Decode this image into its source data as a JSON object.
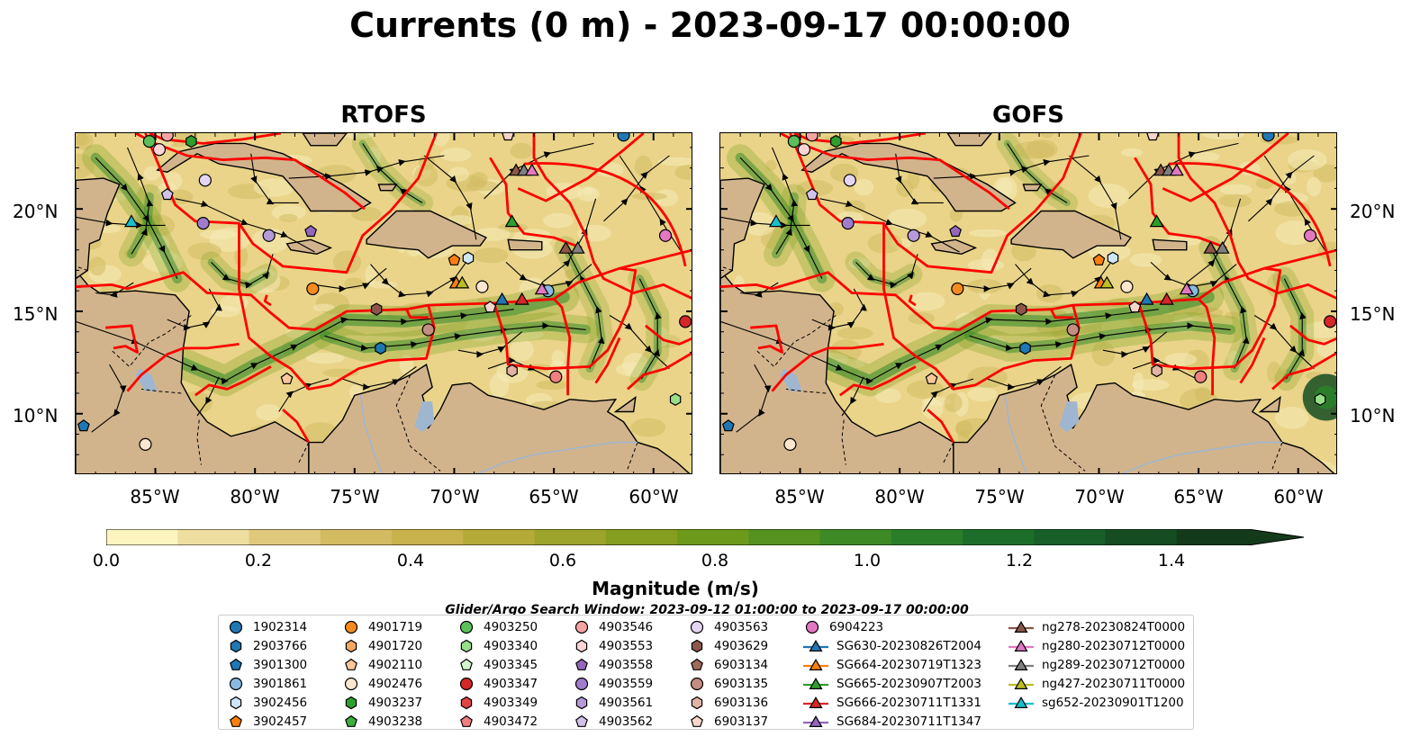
{
  "title": "Currents (0 m) - 2023-09-17 00:00:00",
  "panels": [
    {
      "title": "RTOFS"
    },
    {
      "title": "GOFS"
    }
  ],
  "axes": {
    "x_ticks": [
      "85°W",
      "80°W",
      "75°W",
      "70°W",
      "65°W",
      "60°W"
    ],
    "y_ticks": [
      "20°N",
      "15°N",
      "10°N"
    ],
    "lon_range": [
      -89,
      -58
    ],
    "lat_range": [
      7,
      23.7
    ]
  },
  "colorbar": {
    "label": "Magnitude (m/s)",
    "ticks": [
      "0.0",
      "0.2",
      "0.4",
      "0.6",
      "0.8",
      "1.0",
      "1.2",
      "1.4"
    ],
    "range": [
      0,
      1.5
    ],
    "colors": [
      "#fdf5c0",
      "#eedfa0",
      "#e0c97c",
      "#d3bb62",
      "#c7b24c",
      "#b4aa38",
      "#9da42c",
      "#869e20",
      "#6e9a1c",
      "#559220",
      "#3e8a26",
      "#2a7e2a",
      "#1d6e2a",
      "#175e28",
      "#154c22",
      "#143a1c"
    ]
  },
  "search_window": "Glider/Argo Search Window: 2023-09-12 01:00:00 to 2023-09-17 00:00:00",
  "colors": {
    "land": "#d2b48c",
    "eez": "#ff0000",
    "lakes": "#9fb6d0"
  },
  "legend": [
    {
      "label": "1902314",
      "marker": "circle",
      "color": "#1f77b4"
    },
    {
      "label": "2903766",
      "marker": "hexagon",
      "color": "#1f77b4"
    },
    {
      "label": "3901300",
      "marker": "pentagon",
      "color": "#1f77b4"
    },
    {
      "label": "3901861",
      "marker": "circle",
      "color": "#88b9e0"
    },
    {
      "label": "3902456",
      "marker": "hexagon",
      "color": "#cfe6f7"
    },
    {
      "label": "3902457",
      "marker": "pentagon",
      "color": "#ff7f0e"
    },
    {
      "label": "4901719",
      "marker": "circle",
      "color": "#f58b1e"
    },
    {
      "label": "4901720",
      "marker": "hexagon",
      "color": "#f9a860"
    },
    {
      "label": "4902110",
      "marker": "pentagon",
      "color": "#fcc89b"
    },
    {
      "label": "4902476",
      "marker": "circle",
      "color": "#fde6cf"
    },
    {
      "label": "4903237",
      "marker": "hexagon",
      "color": "#2ca02c"
    },
    {
      "label": "4903238",
      "marker": "pentagon",
      "color": "#3cae3c"
    },
    {
      "label": "4903250",
      "marker": "circle",
      "color": "#5bc05b"
    },
    {
      "label": "4903340",
      "marker": "hexagon",
      "color": "#98df8a"
    },
    {
      "label": "4903345",
      "marker": "pentagon",
      "color": "#d2f5cc"
    },
    {
      "label": "4903347",
      "marker": "circle",
      "color": "#d62728"
    },
    {
      "label": "4903349",
      "marker": "hexagon",
      "color": "#e04545"
    },
    {
      "label": "4903472",
      "marker": "pentagon",
      "color": "#f07f7f"
    },
    {
      "label": "4903546",
      "marker": "circle",
      "color": "#f5a3a3"
    },
    {
      "label": "4903553",
      "marker": "hexagon",
      "color": "#fbd5d5"
    },
    {
      "label": "4903558",
      "marker": "pentagon",
      "color": "#9467bd"
    },
    {
      "label": "4903559",
      "marker": "circle",
      "color": "#a07ccc"
    },
    {
      "label": "4903561",
      "marker": "hexagon",
      "color": "#b59ad9"
    },
    {
      "label": "4903562",
      "marker": "pentagon",
      "color": "#d2c2ea"
    },
    {
      "label": "4903563",
      "marker": "circle",
      "color": "#e4d6f3"
    },
    {
      "label": "4903629",
      "marker": "hexagon",
      "color": "#8c564b"
    },
    {
      "label": "6903134",
      "marker": "pentagon",
      "color": "#a06a5e"
    },
    {
      "label": "6903135",
      "marker": "circle",
      "color": "#c48e80"
    },
    {
      "label": "6903136",
      "marker": "hexagon",
      "color": "#e0b4a4"
    },
    {
      "label": "6903137",
      "marker": "pentagon",
      "color": "#f6d5cb"
    },
    {
      "label": "6904223",
      "marker": "circle",
      "color": "#e377c2"
    },
    {
      "label": "SG630-20230826T2004",
      "marker": "triangle-line",
      "color": "#1f77b4"
    },
    {
      "label": "SG664-20230719T1323",
      "marker": "triangle-line",
      "color": "#ff7f0e"
    },
    {
      "label": "SG665-20230907T2003",
      "marker": "triangle-line",
      "color": "#2ca02c"
    },
    {
      "label": "SG666-20230711T1331",
      "marker": "triangle-line",
      "color": "#d62728"
    },
    {
      "label": "SG684-20230711T1347",
      "marker": "triangle-line",
      "color": "#9467bd"
    },
    {
      "label": "ng278-20230824T0000",
      "marker": "triangle-line",
      "color": "#8c564b"
    },
    {
      "label": "ng280-20230712T0000",
      "marker": "triangle-line",
      "color": "#e377c2"
    },
    {
      "label": "ng289-20230712T0000",
      "marker": "triangle-line",
      "color": "#7f7f7f"
    },
    {
      "label": "ng427-20230711T0000",
      "marker": "triangle-line",
      "color": "#bcbd22"
    },
    {
      "label": "sg652-20230901T1200",
      "marker": "triangle-line",
      "color": "#17becf"
    }
  ]
}
